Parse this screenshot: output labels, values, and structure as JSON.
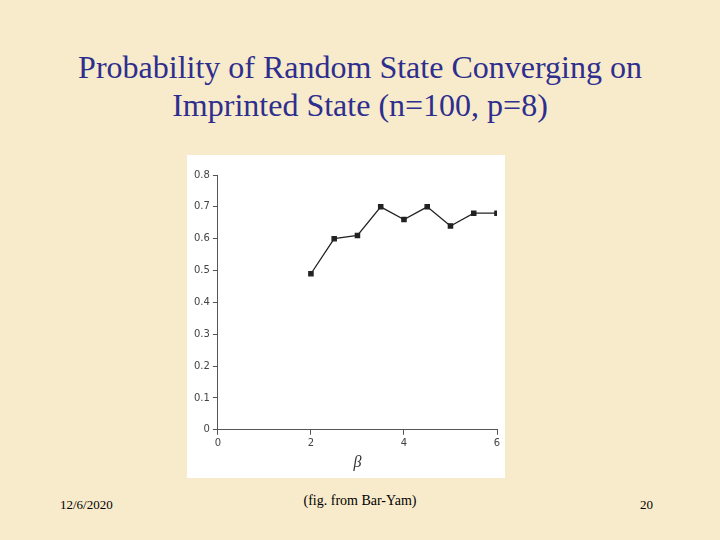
{
  "chart_data": {
    "type": "line",
    "title": "Probability of Random State Converging on Imprinted State (n=100, p=8)",
    "x_label": "β",
    "x": [
      2,
      2.5,
      3,
      3.5,
      4,
      4.5,
      5,
      5.5,
      6
    ],
    "values": [
      0.49,
      0.6,
      0.61,
      0.7,
      0.66,
      0.7,
      0.64,
      0.68,
      0.68
    ],
    "color": "#222222",
    "marker": "square",
    "line_style": "solid",
    "xlim": [
      0,
      6
    ],
    "xticks": [
      0,
      2,
      4,
      6
    ],
    "ylim": [
      0,
      0.8
    ],
    "yticks": [
      0,
      0.1,
      0.2,
      0.3,
      0.4,
      0.5,
      0.6,
      0.7,
      0.8
    ],
    "grid": false
  },
  "footer": {
    "date": "12/6/2020",
    "source": "(fig. from Bar-Yam)",
    "page": "20"
  }
}
